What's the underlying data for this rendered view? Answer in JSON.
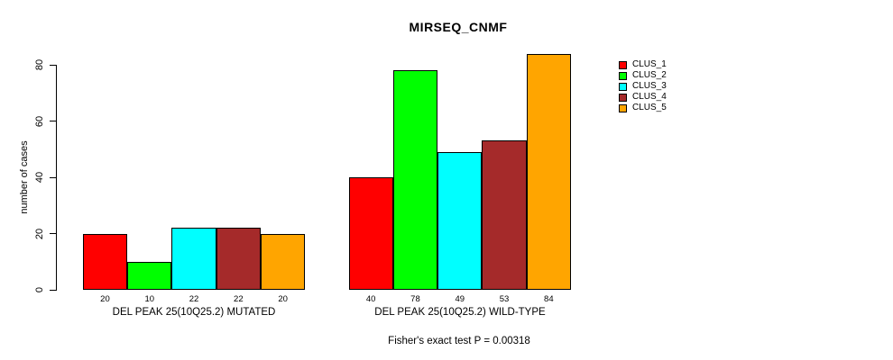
{
  "title": "MIRSEQ_CNMF",
  "chart_data": {
    "type": "bar",
    "title": "MIRSEQ_CNMF",
    "ylabel": "number of cases",
    "xlabel": "",
    "ylim": [
      0,
      80
    ],
    "yticks": [
      0,
      20,
      40,
      60,
      80
    ],
    "grid": false,
    "bar_border_color": "#000000",
    "clusters": [
      "CLUS_1",
      "CLUS_2",
      "CLUS_3",
      "CLUS_4",
      "CLUS_5"
    ],
    "series_colors": [
      "#FF0000",
      "#00FF00",
      "#00FFFF",
      "#A52A2A",
      "#FFA500"
    ],
    "groups": [
      {
        "label": "DEL PEAK 25(10Q25.2) MUTATED",
        "values": [
          20,
          10,
          22,
          22,
          20
        ]
      },
      {
        "label": "DEL PEAK 25(10Q25.2) WILD-TYPE",
        "values": [
          40,
          78,
          49,
          53,
          84
        ]
      }
    ],
    "subtitle": "Fisher's exact test P = 0.00318",
    "legend": {
      "position": "top-right",
      "entries": [
        {
          "label": "CLUS_1",
          "color": "#FF0000"
        },
        {
          "label": "CLUS_2",
          "color": "#00FF00"
        },
        {
          "label": "CLUS_3",
          "color": "#00FFFF"
        },
        {
          "label": "CLUS_4",
          "color": "#A52A2A"
        },
        {
          "label": "CLUS_5",
          "color": "#FFA500"
        }
      ]
    }
  }
}
